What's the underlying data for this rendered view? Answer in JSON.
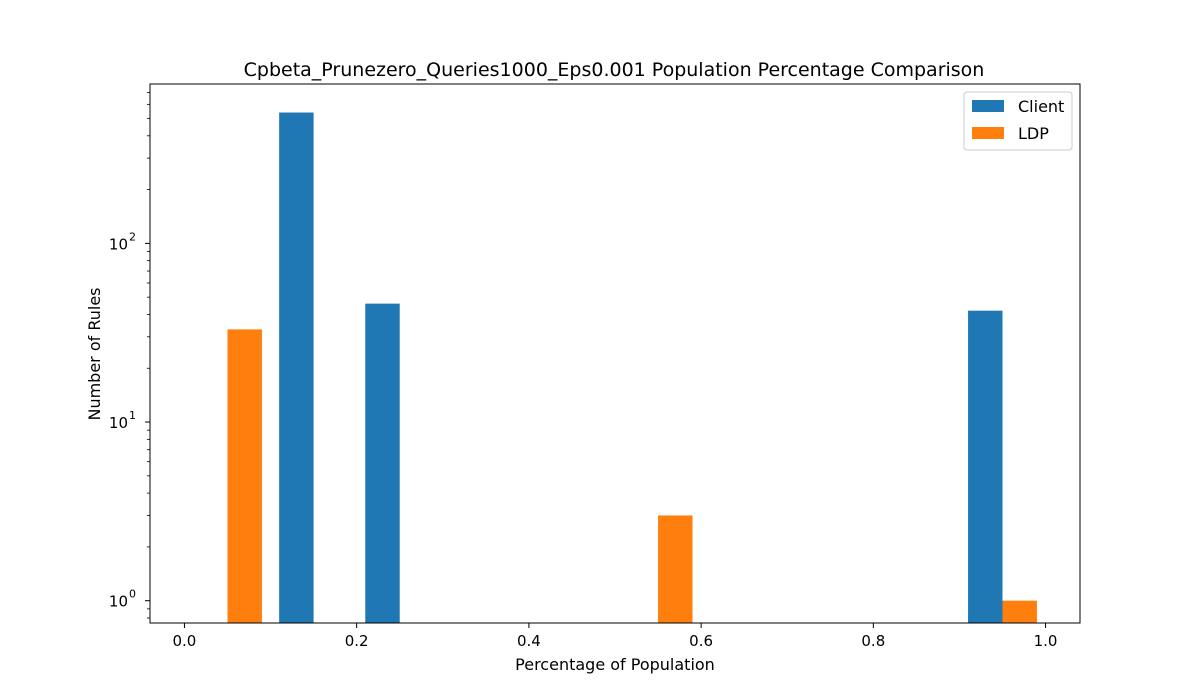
{
  "chart_data": {
    "type": "bar",
    "title": "Cpbeta_Prunezero_Queries1000_Eps0.001 Population Percentage Comparison",
    "xlabel": "Percentage of Population",
    "ylabel": "Number of Rules",
    "xlim": [
      -0.04,
      1.04
    ],
    "ylim": [
      0.75,
      780
    ],
    "yscale": "log",
    "x_ticks": [
      "0.0",
      "0.2",
      "0.4",
      "0.6",
      "0.8",
      "1.0"
    ],
    "x_tick_values": [
      0.0,
      0.2,
      0.4,
      0.6,
      0.8,
      1.0
    ],
    "y_ticks": [
      {
        "base": "10",
        "exp": "0",
        "value": 1
      },
      {
        "base": "10",
        "exp": "1",
        "value": 10
      },
      {
        "base": "10",
        "exp": "2",
        "value": 100
      }
    ],
    "bar_width": 0.04,
    "legend_position": "top-right",
    "grid": false,
    "series": [
      {
        "name": "Client",
        "color": "#1f77b4",
        "x": [
          0.13,
          0.23,
          0.93
        ],
        "values": [
          540,
          46,
          42
        ]
      },
      {
        "name": "LDP",
        "color": "#ff7f0e",
        "x": [
          0.07,
          0.57,
          0.97
        ],
        "values": [
          33,
          3,
          1
        ]
      }
    ]
  }
}
